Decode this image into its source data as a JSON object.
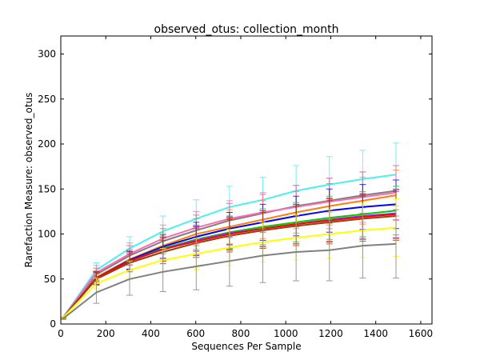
{
  "chart_data": {
    "type": "line",
    "title": "observed_otus: collection_month",
    "xlabel": "Sequences Per Sample",
    "ylabel": "Rarefaction Measure: observed_otus",
    "xlim": [
      0,
      1650
    ],
    "ylim": [
      0,
      320
    ],
    "xticks": [
      0,
      200,
      400,
      600,
      800,
      1000,
      1200,
      1400,
      1600
    ],
    "yticks": [
      0,
      50,
      100,
      150,
      200,
      250,
      300
    ],
    "grid": false,
    "legend": "none",
    "x": [
      10,
      158,
      306,
      454,
      602,
      750,
      898,
      1046,
      1194,
      1342,
      1490
    ],
    "series": [
      {
        "color": "#4bf0f0",
        "values": [
          7,
          60,
          84,
          103,
          117,
          130,
          138,
          148,
          155,
          161,
          166
        ],
        "err": [
          1,
          8,
          13,
          17,
          21,
          23,
          25,
          28,
          31,
          32,
          35
        ]
      },
      {
        "color": "#7f7f7f",
        "values": [
          7,
          55,
          76,
          92,
          104,
          115,
          123,
          131,
          137,
          143,
          148
        ],
        "err": [
          1,
          7,
          11,
          14,
          17,
          19,
          21,
          23,
          25,
          26,
          28
        ]
      },
      {
        "color": "#ff7f0e",
        "values": [
          7,
          52,
          72,
          87,
          100,
          108,
          116,
          124,
          131,
          137,
          143
        ],
        "err": [
          1,
          7,
          11,
          14,
          17,
          19,
          21,
          23,
          25,
          26,
          28
        ]
      },
      {
        "color": "#ff69b4",
        "values": [
          7,
          57,
          78,
          95,
          107,
          117,
          124,
          130,
          136,
          141,
          146
        ],
        "err": [
          1,
          8,
          12,
          15,
          18,
          20,
          22,
          24,
          26,
          28,
          30
        ]
      },
      {
        "color": "#0000ff",
        "values": [
          7,
          51,
          71,
          86,
          97,
          106,
          113,
          120,
          126,
          130,
          133
        ],
        "err": [
          1,
          7,
          10,
          13,
          16,
          18,
          20,
          22,
          24,
          25,
          27
        ]
      },
      {
        "color": "#00cc00",
        "values": [
          7,
          51,
          70,
          84,
          94,
          102,
          108,
          113,
          118,
          122,
          126
        ],
        "err": [
          1,
          7,
          10,
          13,
          16,
          18,
          20,
          22,
          24,
          25,
          27
        ]
      },
      {
        "color": "#9b30ff",
        "values": [
          7,
          51,
          70,
          83,
          93,
          101,
          106,
          111,
          116,
          120,
          123
        ],
        "err": [
          1,
          7,
          10,
          13,
          16,
          18,
          20,
          22,
          24,
          25,
          27
        ]
      },
      {
        "color": "#ff0000",
        "values": [
          7,
          51,
          70,
          83,
          92,
          100,
          106,
          111,
          115,
          119,
          122
        ],
        "err": [
          1,
          7,
          10,
          13,
          16,
          18,
          20,
          22,
          24,
          25,
          27
        ]
      },
      {
        "color": "#8b4513",
        "values": [
          7,
          50,
          68,
          80,
          90,
          98,
          104,
          109,
          113,
          117,
          120
        ],
        "err": [
          1,
          7,
          10,
          13,
          16,
          18,
          20,
          22,
          24,
          25,
          27
        ]
      },
      {
        "color": "#ffff00",
        "values": [
          7,
          45,
          60,
          71,
          78,
          85,
          91,
          96,
          100,
          104,
          107
        ],
        "err": [
          1,
          6,
          10,
          13,
          17,
          20,
          22,
          25,
          27,
          30,
          32
        ]
      },
      {
        "color": "#808080",
        "values": [
          6,
          35,
          50,
          58,
          64,
          70,
          76,
          80,
          82,
          87,
          89
        ],
        "err": [
          1,
          12,
          18,
          22,
          26,
          28,
          30,
          32,
          34,
          36,
          38
        ]
      }
    ]
  }
}
